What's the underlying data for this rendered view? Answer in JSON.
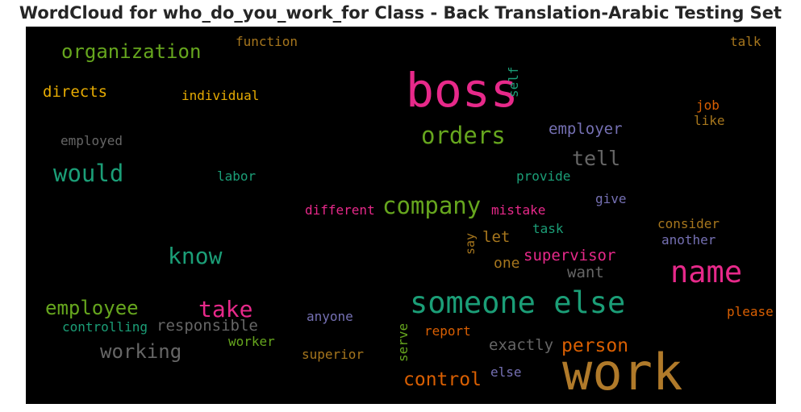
{
  "chart_data": {
    "type": "wordcloud",
    "title": "WordCloud for who_do_you_work_for Class - Back Translation-Arabic Testing Set",
    "background": "#000000",
    "words": [
      {
        "text": "work",
        "color": "#b07a2a"
      },
      {
        "text": "boss",
        "color": "#e7298a"
      },
      {
        "text": "someone else",
        "color": "#1b9e77"
      },
      {
        "text": "name",
        "color": "#e7298a"
      },
      {
        "text": "company",
        "color": "#66a61e"
      },
      {
        "text": "orders",
        "color": "#66a61e"
      },
      {
        "text": "would",
        "color": "#1b9e77"
      },
      {
        "text": "know",
        "color": "#1b9e77"
      },
      {
        "text": "take",
        "color": "#e7298a"
      },
      {
        "text": "organization",
        "color": "#66a61e"
      },
      {
        "text": "employee",
        "color": "#66a61e"
      },
      {
        "text": "working",
        "color": "#666666"
      },
      {
        "text": "tell",
        "color": "#666666"
      },
      {
        "text": "control",
        "color": "#d95f02"
      },
      {
        "text": "person",
        "color": "#d95f02"
      },
      {
        "text": "responsible",
        "color": "#666666"
      },
      {
        "text": "directs",
        "color": "#e6ab02"
      },
      {
        "text": "employer",
        "color": "#7570b3"
      },
      {
        "text": "supervisor",
        "color": "#e7298a"
      },
      {
        "text": "exactly",
        "color": "#666666"
      },
      {
        "text": "want",
        "color": "#666666"
      },
      {
        "text": "let",
        "color": "#a6761d"
      },
      {
        "text": "individual",
        "color": "#e6ab02"
      },
      {
        "text": "employed",
        "color": "#666666"
      },
      {
        "text": "function",
        "color": "#a6761d"
      },
      {
        "text": "labor",
        "color": "#1b9e77"
      },
      {
        "text": "different",
        "color": "#e7298a"
      },
      {
        "text": "mistake",
        "color": "#e7298a"
      },
      {
        "text": "provide",
        "color": "#1b9e77"
      },
      {
        "text": "give",
        "color": "#7570b3"
      },
      {
        "text": "task",
        "color": "#1b9e77"
      },
      {
        "text": "one",
        "color": "#a6761d"
      },
      {
        "text": "say",
        "color": "#a6761d"
      },
      {
        "text": "controlling",
        "color": "#1b9e77"
      },
      {
        "text": "worker",
        "color": "#66a61e"
      },
      {
        "text": "anyone",
        "color": "#7570b3"
      },
      {
        "text": "report",
        "color": "#d95f02"
      },
      {
        "text": "superior",
        "color": "#a6761d"
      },
      {
        "text": "serve",
        "color": "#66a61e"
      },
      {
        "text": "else",
        "color": "#7570b3"
      },
      {
        "text": "self",
        "color": "#1b9e77"
      },
      {
        "text": "job",
        "color": "#d95f02"
      },
      {
        "text": "like",
        "color": "#a6761d"
      },
      {
        "text": "talk",
        "color": "#a6761d"
      },
      {
        "text": "consider",
        "color": "#a6761d"
      },
      {
        "text": "another",
        "color": "#7570b3"
      },
      {
        "text": "please",
        "color": "#d95f02"
      }
    ]
  }
}
